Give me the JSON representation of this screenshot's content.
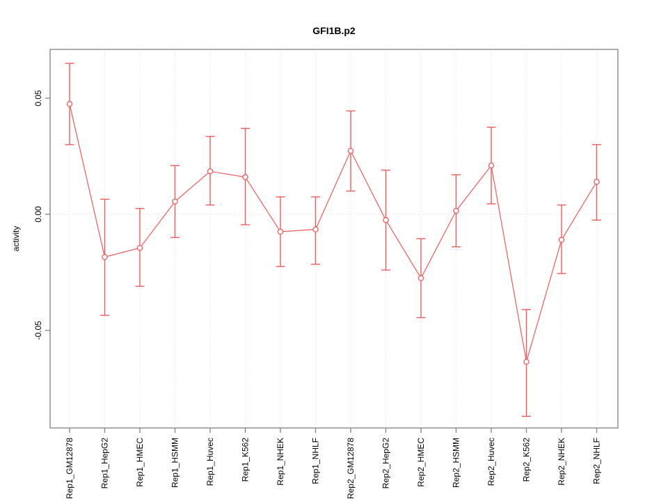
{
  "chart_data": {
    "type": "line",
    "title": "GFI1B.p2",
    "ylabel": "activity",
    "xlabel": "",
    "legend_position": "none",
    "grid": {
      "style": "dotted",
      "vertical_per_category": true,
      "horizontal_at_zero": true
    },
    "ylim": [
      -0.092,
      0.071
    ],
    "yticks": [
      {
        "label": "0.05",
        "value": 0.05
      },
      {
        "label": "0.00",
        "value": 0.0
      },
      {
        "label": "-0.05",
        "value": -0.05
      }
    ],
    "series_color": "#EF5A5A",
    "axis_color": "#808080",
    "grid_color": "#DBDBDB",
    "marker": "open-circle",
    "categories": [
      "Rep1_GM12878",
      "Rep1_HepG2",
      "Rep1_HMEC",
      "Rep1_HSMM",
      "Rep1_Huvec",
      "Rep1_K562",
      "Rep1_NHEK",
      "Rep1_NHLF",
      "Rep2_GM12878",
      "Rep2_HepG2",
      "Rep2_HMEC",
      "Rep2_HSMM",
      "Rep2_Huvec",
      "Rep2_K562",
      "Rep2_NHEK",
      "Rep2_NHLF"
    ],
    "points": [
      {
        "label": "Rep1_GM12878",
        "value": 0.0475,
        "upper": 0.065,
        "lower": 0.03
      },
      {
        "label": "Rep1_HepG2",
        "value": -0.0184,
        "upper": 0.0065,
        "lower": -0.0435
      },
      {
        "label": "Rep1_HMEC",
        "value": -0.0145,
        "upper": 0.0025,
        "lower": -0.031
      },
      {
        "label": "Rep1_HSMM",
        "value": 0.0055,
        "upper": 0.021,
        "lower": -0.01
      },
      {
        "label": "Rep1_Huvec",
        "value": 0.0185,
        "upper": 0.0335,
        "lower": 0.004
      },
      {
        "label": "Rep1_K562",
        "value": 0.016,
        "upper": 0.037,
        "lower": -0.0045
      },
      {
        "label": "Rep1_NHEK",
        "value": -0.0075,
        "upper": 0.0075,
        "lower": -0.0225
      },
      {
        "label": "Rep1_NHLF",
        "value": -0.0065,
        "upper": 0.0075,
        "lower": -0.0215
      },
      {
        "label": "Rep2_GM12878",
        "value": 0.0273,
        "upper": 0.0445,
        "lower": 0.01
      },
      {
        "label": "Rep2_HepG2",
        "value": -0.0025,
        "upper": 0.019,
        "lower": -0.024
      },
      {
        "label": "Rep2_HMEC",
        "value": -0.0275,
        "upper": -0.0105,
        "lower": -0.0445
      },
      {
        "label": "Rep2_HSMM",
        "value": 0.0015,
        "upper": 0.017,
        "lower": -0.014
      },
      {
        "label": "Rep2_Huvec",
        "value": 0.021,
        "upper": 0.0375,
        "lower": 0.0045
      },
      {
        "label": "Rep2_K562",
        "value": -0.0635,
        "upper": -0.041,
        "lower": -0.087
      },
      {
        "label": "Rep2_NHEK",
        "value": -0.011,
        "upper": 0.004,
        "lower": -0.0255
      },
      {
        "label": "Rep2_NHLF",
        "value": 0.014,
        "upper": 0.03,
        "lower": -0.0025
      }
    ]
  }
}
